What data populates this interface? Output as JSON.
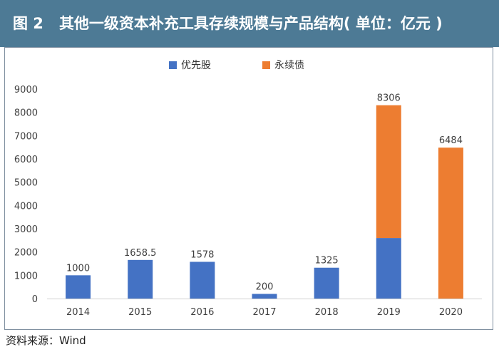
{
  "figure": {
    "label": "图 2",
    "title": "其他一级资本补充工具存续规模与产品结构( 单位：亿元 )",
    "source": "资料来源：Wind"
  },
  "colors": {
    "header_bg": "#4d7a95",
    "series_preferred": "#4472c4",
    "series_perpetual": "#ed7d31"
  },
  "chart_data": {
    "type": "bar",
    "stacked": true,
    "title": "其他一级资本补充工具存续规模与产品结构( 单位：亿元 )",
    "xlabel": "",
    "ylabel": "",
    "categories": [
      "2014",
      "2015",
      "2016",
      "2017",
      "2018",
      "2019",
      "2020"
    ],
    "series": [
      {
        "name": "优先股",
        "color": "#4472c4",
        "values": [
          1000,
          1658.5,
          1578,
          200,
          1325,
          2600,
          0
        ]
      },
      {
        "name": "永续债",
        "color": "#ed7d31",
        "values": [
          0,
          0,
          0,
          0,
          0,
          5706,
          6484
        ]
      }
    ],
    "totals": [
      "1000",
      "1658.5",
      "1578",
      "200",
      "1325",
      "8306",
      "6484"
    ],
    "ylim": [
      0,
      9000
    ],
    "yticks": [
      "0",
      "1000",
      "2000",
      "3000",
      "4000",
      "5000",
      "6000",
      "7000",
      "8000",
      "9000"
    ],
    "grid": false,
    "legend_position": "top-center"
  }
}
